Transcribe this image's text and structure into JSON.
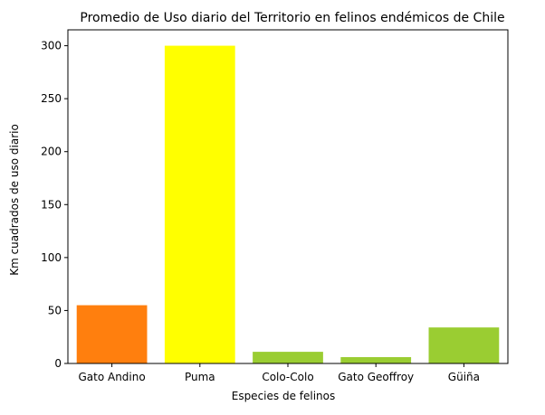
{
  "chart_data": {
    "type": "bar",
    "title": "Promedio de Uso diario del Territorio en felinos endémicos de Chile",
    "xlabel": "Especies de felinos",
    "ylabel": "Km cuadrados de uso diario",
    "categories": [
      "Gato Andino",
      "Puma",
      "Colo-Colo",
      "Gato Geoffroy",
      "Güiña"
    ],
    "values": [
      55,
      300,
      11,
      6,
      34
    ],
    "colors": [
      "#ff7f0e",
      "#ffff00",
      "#9acd32",
      "#9acd32",
      "#9acd32"
    ],
    "ylim": [
      0,
      315
    ],
    "yticks": [
      0,
      50,
      100,
      150,
      200,
      250,
      300
    ],
    "grid": false
  }
}
